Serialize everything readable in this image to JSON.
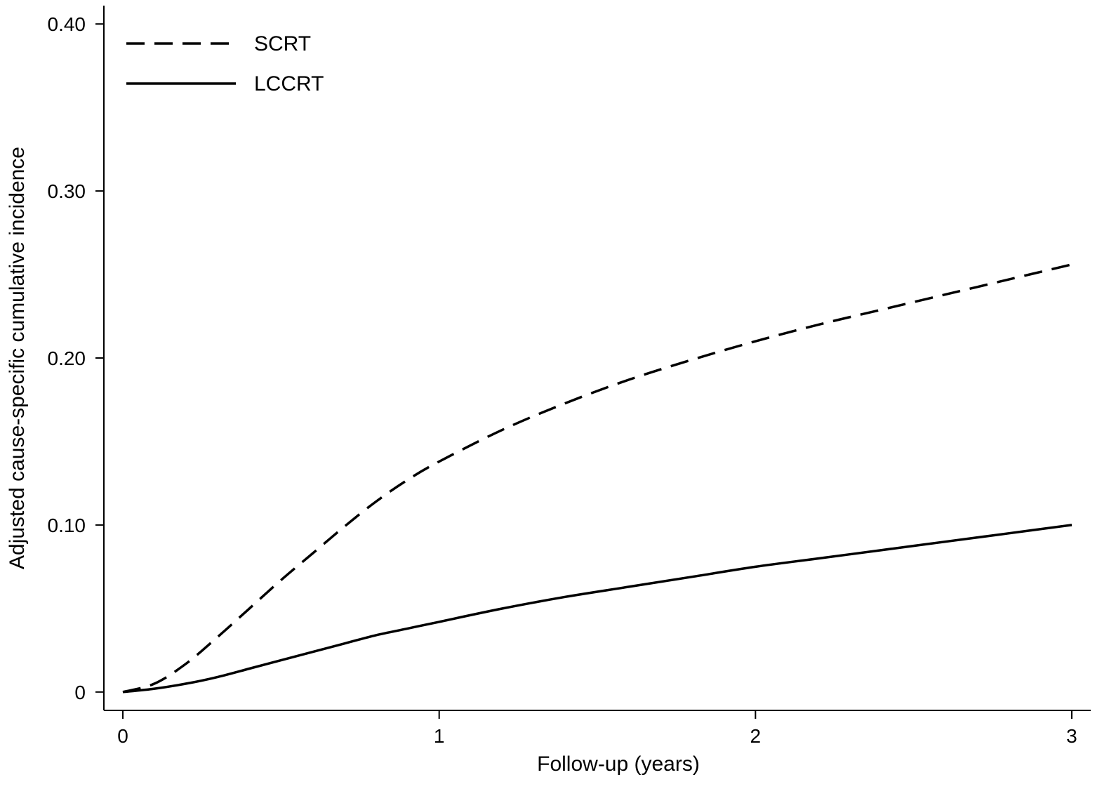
{
  "chart_data": {
    "type": "line",
    "title": "",
    "xlabel": "Follow-up (years)",
    "ylabel": "Adjusted cause-specific cumulative incidence",
    "xlim": [
      -0.06,
      3.06
    ],
    "ylim": [
      -0.011,
      0.411
    ],
    "xticks": [
      {
        "value": 0,
        "label": "0"
      },
      {
        "value": 1,
        "label": "1"
      },
      {
        "value": 2,
        "label": "2"
      },
      {
        "value": 3,
        "label": "3"
      }
    ],
    "yticks": [
      {
        "value": 0,
        "label": "0"
      },
      {
        "value": 0.1,
        "label": "0.10"
      },
      {
        "value": 0.2,
        "label": "0.20"
      },
      {
        "value": 0.3,
        "label": "0.30"
      },
      {
        "value": 0.4,
        "label": "0.40"
      }
    ],
    "grid": false,
    "legend_position": "top-left",
    "series": [
      {
        "name": "SCRT",
        "style": "dashed",
        "color": "#000000",
        "x": [
          0,
          0.1,
          0.2,
          0.3,
          0.4,
          0.5,
          0.6,
          0.7,
          0.8,
          0.9,
          1.0,
          1.2,
          1.4,
          1.6,
          1.8,
          2.0,
          2.2,
          2.4,
          2.6,
          2.8,
          3.0
        ],
        "y": [
          0,
          0.005,
          0.017,
          0.033,
          0.05,
          0.067,
          0.083,
          0.099,
          0.114,
          0.127,
          0.138,
          0.157,
          0.173,
          0.187,
          0.199,
          0.21,
          0.22,
          0.229,
          0.238,
          0.247,
          0.256
        ]
      },
      {
        "name": "LCCRT",
        "style": "solid",
        "color": "#000000",
        "x": [
          0,
          0.1,
          0.2,
          0.3,
          0.4,
          0.5,
          0.6,
          0.7,
          0.8,
          0.9,
          1.0,
          1.2,
          1.4,
          1.6,
          1.8,
          2.0,
          2.2,
          2.4,
          2.6,
          2.8,
          3.0
        ],
        "y": [
          0,
          0.002,
          0.005,
          0.009,
          0.014,
          0.019,
          0.024,
          0.029,
          0.034,
          0.038,
          0.042,
          0.05,
          0.057,
          0.063,
          0.069,
          0.075,
          0.08,
          0.085,
          0.09,
          0.095,
          0.1
        ]
      }
    ]
  }
}
